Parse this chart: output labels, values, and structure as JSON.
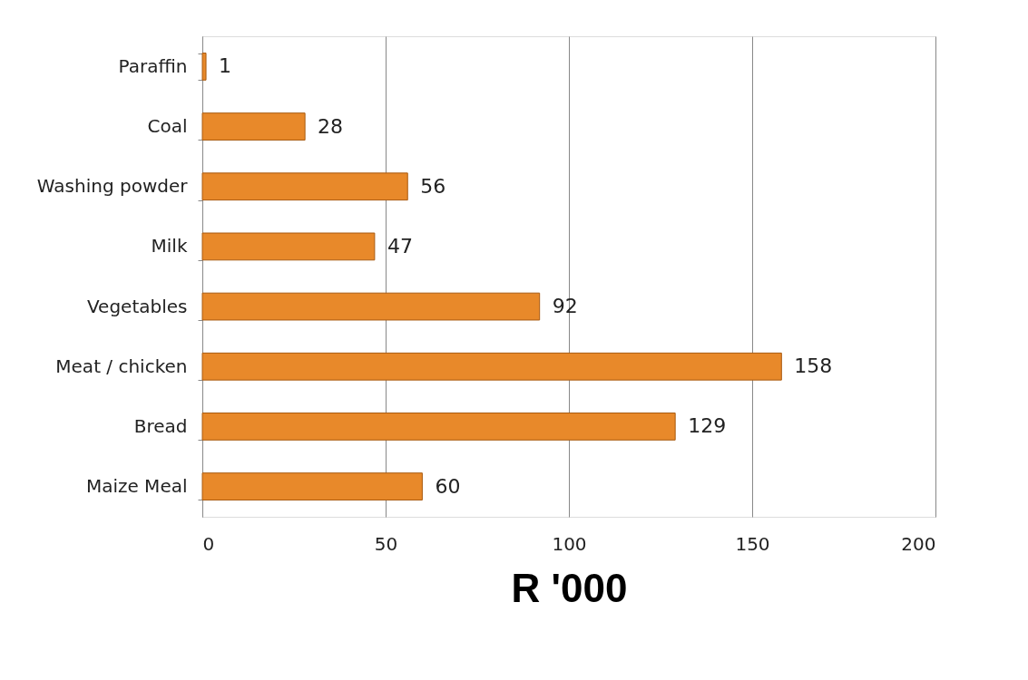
{
  "chart_data": {
    "type": "bar",
    "orientation": "horizontal",
    "xlabel": "R '000",
    "categories": [
      "Paraffin",
      "Coal",
      "Washing powder",
      "Milk",
      "Vegetables",
      "Meat / chicken",
      "Bread",
      "Maize Meal"
    ],
    "values": [
      1,
      28,
      56,
      47,
      92,
      158,
      129,
      60
    ],
    "color": "#e8892a",
    "xlim": [
      0,
      200
    ],
    "xticks": [
      0,
      50,
      100,
      150,
      200
    ],
    "grid": "x",
    "data_labels": true
  }
}
